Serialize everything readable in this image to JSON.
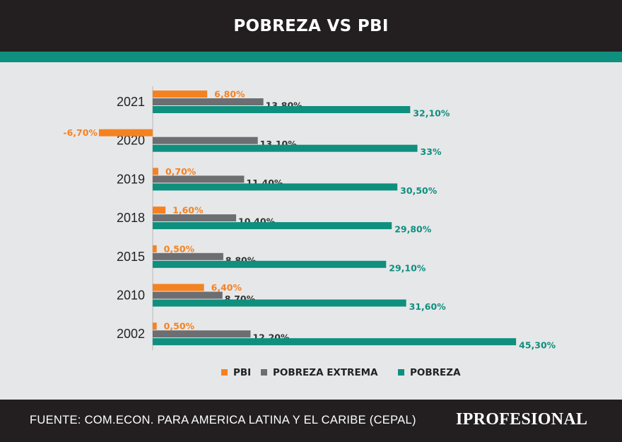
{
  "header": {
    "title": "POBREZA VS PBI"
  },
  "footer": {
    "source": "FUENTE: COM.ECON. PARA AMERICA LATINA Y EL CARIBE (CEPAL)",
    "brand": "IPROFESIONAL"
  },
  "colors": {
    "pbi": "#f58220",
    "pobreza_extrema": "#6d6e71",
    "pobreza": "#0f8f7e",
    "header_bg": "#231f20",
    "background": "#e6e7e9"
  },
  "chart_data": {
    "type": "bar",
    "orientation": "horizontal",
    "title": "POBREZA VS PBI",
    "categories": [
      "2021",
      "2020",
      "2019",
      "2018",
      "2015",
      "2010",
      "2002"
    ],
    "series": [
      {
        "name": "PBI",
        "values": [
          6.8,
          -6.7,
          0.7,
          1.6,
          0.5,
          6.4,
          0.5
        ],
        "labels": [
          "6,80%",
          "-6,70%",
          "0,70%",
          "1,60%",
          "0,50%",
          "6,40%",
          "0,50%"
        ]
      },
      {
        "name": "POBREZA EXTREMA",
        "values": [
          13.8,
          13.1,
          11.4,
          10.4,
          8.8,
          8.7,
          12.2
        ],
        "labels": [
          "13,80%",
          "13,10%",
          "11,40%",
          "10,40%",
          "8,80%",
          "8,70%",
          "12,20%"
        ]
      },
      {
        "name": "POBREZA",
        "values": [
          32.1,
          33,
          30.5,
          29.8,
          29.1,
          31.6,
          45.3
        ],
        "labels": [
          "32,10%",
          "33%",
          "30,50%",
          "29,80%",
          "29,10%",
          "31,60%",
          "45,30%"
        ]
      }
    ],
    "xlabel": "",
    "ylabel": "",
    "xlim": [
      -6.7,
      45.3
    ],
    "grid": false,
    "legend_position": "bottom"
  }
}
